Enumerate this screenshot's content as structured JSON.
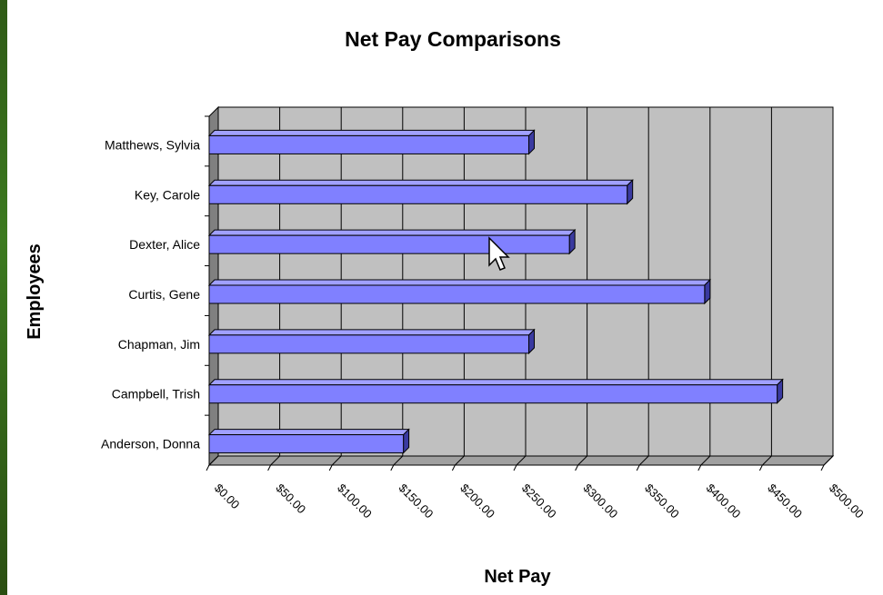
{
  "chart_data": {
    "type": "bar",
    "orientation": "horizontal",
    "title": "Net Pay Comparisons",
    "xlabel": "Net Pay",
    "ylabel": "Employees",
    "categories": [
      "Matthews, Sylvia",
      "Key, Carole",
      "Dexter, Alice",
      "Curtis, Gene",
      "Chapman, Jim",
      "Campbell, Trish",
      "Anderson, Donna"
    ],
    "values": [
      260,
      340,
      293,
      403,
      260,
      462,
      158
    ],
    "xlim": [
      0,
      500
    ],
    "x_ticks": [
      "$0.00",
      "$50.00",
      "$100.00",
      "$150.00",
      "$200.00",
      "$250.00",
      "$300.00",
      "$350.00",
      "$400.00",
      "$450.00",
      "$500.00"
    ],
    "grid": true,
    "legend": "none",
    "colors": {
      "bar": "#8080ff",
      "bar_top": "#a0a0ff",
      "bar_side": "#3a3aa0",
      "plot_back": "#c0c0c0",
      "plot_floor": "#808080",
      "page": "#ffffff",
      "outer": "#3c7a1f"
    }
  },
  "cursor": {
    "icon": "mouse-pointer-icon"
  }
}
